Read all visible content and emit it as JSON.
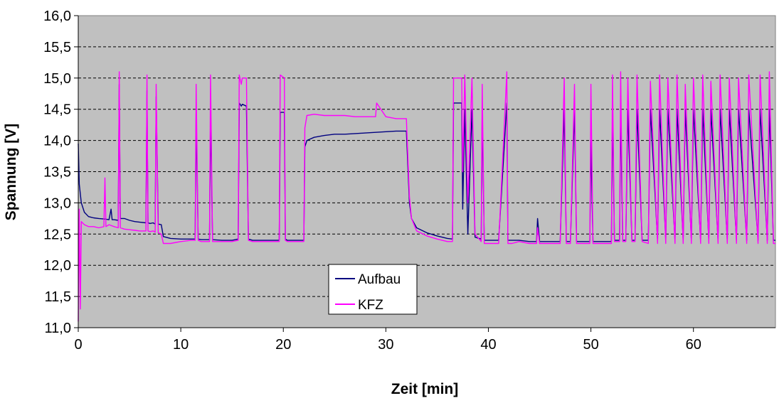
{
  "chart_data": {
    "type": "line",
    "xlabel": "Zeit [min]",
    "ylabel": "Spannung [V]",
    "xlim": [
      0,
      68
    ],
    "ylim": [
      11.0,
      16.0
    ],
    "x_ticks": [
      0,
      10,
      20,
      30,
      40,
      50,
      60
    ],
    "x_tick_labels": [
      "0",
      "10",
      "20",
      "30",
      "40",
      "50",
      "60"
    ],
    "y_ticks": [
      11.0,
      11.5,
      12.0,
      12.5,
      13.0,
      13.5,
      14.0,
      14.5,
      15.0,
      15.5,
      16.0
    ],
    "y_tick_labels": [
      "11,0",
      "11,5",
      "12,0",
      "12,5",
      "13,0",
      "13,5",
      "14,0",
      "14,5",
      "15,0",
      "15,5",
      "16,0"
    ],
    "grid": "horizontal-dashed",
    "plot_background": "#c0c0c0",
    "legend": {
      "placement": "bottom-center",
      "entries": [
        "Aufbau",
        "KFZ"
      ]
    },
    "series": [
      {
        "name": "Aufbau",
        "color": "#000080",
        "x": [
          0,
          0.1,
          0.3,
          0.6,
          1.0,
          1.5,
          2.0,
          2.6,
          3.0,
          3.2,
          3.3,
          3.5,
          3.9,
          4.0,
          4.1,
          4.5,
          5.0,
          5.5,
          6.0,
          6.6,
          6.7,
          6.8,
          7.0,
          7.3,
          7.5,
          7.6,
          7.8,
          8.1,
          8.3,
          9.0,
          10.0,
          11.0,
          11.4,
          11.5,
          11.7,
          12.0,
          12.8,
          12.9,
          13.1,
          14.0,
          15.0,
          15.6,
          15.7,
          15.9,
          16.0,
          16.4,
          16.6,
          17.0,
          18.0,
          19.0,
          19.6,
          19.7,
          20.1,
          20.2,
          20.4,
          21.0,
          22.0,
          22.1,
          22.3,
          23.0,
          24.0,
          25.0,
          26.0,
          27.0,
          28.0,
          29.0,
          30.0,
          31.0,
          32.0,
          32.3,
          32.5,
          33.0,
          34.0,
          35.0,
          36.0,
          36.5,
          36.6,
          37.0,
          37.4,
          37.5,
          37.7,
          38.0,
          38.4,
          38.7,
          39.3,
          39.4,
          39.6,
          40.0,
          41.0,
          41.8,
          41.9,
          42.3,
          43.0,
          44.0,
          44.7,
          44.8,
          45.0,
          46.0,
          47.0,
          47.4,
          47.6,
          48.0,
          48.4,
          48.6,
          49.0,
          49.9,
          50.0,
          50.2,
          51.0,
          52.0,
          52.1,
          52.3,
          52.8,
          52.9,
          53.1,
          53.4,
          53.6,
          54.0,
          54.3,
          54.5,
          55.0,
          55.6,
          55.8,
          56.5,
          56.7,
          57.3,
          57.5,
          58.2,
          58.4,
          59.0,
          59.2,
          59.8,
          60.0,
          60.7,
          60.9,
          61.5,
          61.7,
          62.4,
          62.6,
          63.3,
          63.5,
          64.2,
          64.4,
          65.2,
          65.4,
          66.3,
          66.5,
          67.2,
          67.4,
          67.8,
          68.0
        ],
        "y": [
          13.95,
          13.3,
          13.0,
          12.85,
          12.78,
          12.76,
          12.75,
          12.74,
          12.73,
          12.9,
          12.73,
          12.73,
          12.72,
          14.9,
          12.75,
          12.75,
          12.72,
          12.7,
          12.69,
          12.68,
          14.8,
          12.68,
          12.67,
          12.68,
          12.66,
          14.7,
          12.66,
          12.65,
          12.46,
          12.43,
          12.42,
          12.42,
          12.42,
          14.45,
          12.42,
          12.41,
          12.41,
          14.45,
          12.41,
          12.4,
          12.4,
          12.42,
          14.6,
          14.55,
          14.58,
          14.55,
          12.42,
          12.4,
          12.4,
          12.4,
          12.4,
          14.45,
          14.45,
          12.42,
          12.4,
          12.4,
          12.4,
          13.9,
          14.0,
          14.05,
          14.08,
          14.1,
          14.1,
          14.11,
          14.12,
          14.13,
          14.14,
          14.15,
          14.15,
          13.0,
          12.75,
          12.6,
          12.52,
          12.47,
          12.43,
          12.42,
          14.6,
          14.6,
          14.6,
          12.9,
          14.5,
          12.5,
          14.5,
          12.45,
          12.42,
          14.5,
          12.4,
          12.4,
          12.4,
          14.6,
          12.4,
          12.4,
          12.4,
          12.38,
          12.38,
          12.75,
          12.38,
          12.38,
          12.38,
          14.5,
          12.38,
          12.38,
          14.5,
          12.38,
          12.38,
          12.38,
          14.0,
          12.38,
          12.38,
          12.38,
          14.5,
          12.4,
          12.4,
          14.5,
          12.4,
          12.4,
          14.5,
          12.4,
          12.4,
          14.5,
          12.4,
          12.4,
          14.5,
          12.4,
          14.5,
          12.4,
          14.5,
          12.4,
          14.5,
          12.4,
          14.5,
          12.4,
          14.5,
          12.4,
          14.5,
          12.4,
          14.5,
          12.4,
          14.5,
          12.4,
          14.5,
          12.4,
          14.5,
          12.4,
          14.5,
          12.4,
          14.5,
          12.4,
          14.5,
          12.4,
          12.4
        ]
      },
      {
        "name": "KFZ",
        "color": "#ff00ff",
        "x": [
          0,
          0.1,
          0.2,
          0.3,
          0.6,
          1.0,
          1.5,
          2.0,
          2.5,
          2.6,
          2.7,
          3.0,
          3.5,
          3.9,
          4.0,
          4.1,
          4.5,
          5.0,
          5.5,
          6.0,
          6.6,
          6.7,
          6.8,
          7.0,
          7.3,
          7.5,
          7.6,
          7.8,
          8.1,
          8.3,
          9.0,
          10.0,
          11.0,
          11.4,
          11.5,
          11.7,
          12.0,
          12.8,
          12.9,
          13.1,
          14.0,
          15.0,
          15.6,
          15.7,
          15.9,
          16.0,
          16.4,
          16.6,
          17.0,
          18.0,
          19.0,
          19.6,
          19.7,
          20.1,
          20.2,
          20.4,
          21.0,
          22.0,
          22.1,
          22.3,
          23.0,
          24.0,
          25.0,
          26.0,
          27.0,
          28.0,
          29.0,
          29.1,
          30.0,
          31.0,
          32.0,
          32.3,
          32.5,
          33.0,
          34.0,
          35.0,
          36.0,
          36.5,
          36.6,
          37.0,
          37.4,
          37.5,
          37.7,
          38.0,
          38.4,
          38.7,
          39.3,
          39.4,
          39.6,
          40.0,
          41.0,
          41.8,
          41.9,
          42.3,
          43.0,
          44.0,
          44.7,
          44.8,
          45.0,
          46.0,
          47.0,
          47.4,
          47.6,
          48.0,
          48.4,
          48.6,
          49.0,
          49.9,
          50.0,
          50.2,
          51.0,
          52.0,
          52.1,
          52.3,
          52.8,
          52.9,
          53.1,
          53.4,
          53.6,
          54.0,
          54.3,
          54.5,
          55.0,
          55.6,
          55.8,
          56.5,
          56.7,
          57.3,
          57.5,
          58.2,
          58.4,
          59.0,
          59.2,
          59.8,
          60.0,
          60.7,
          60.9,
          61.5,
          61.7,
          62.4,
          62.6,
          63.3,
          63.5,
          64.2,
          64.4,
          65.2,
          65.4,
          66.3,
          66.5,
          67.2,
          67.4,
          67.8,
          68.0
        ],
        "y": [
          11.1,
          12.9,
          11.3,
          12.7,
          12.65,
          12.62,
          12.62,
          12.6,
          12.62,
          13.4,
          12.62,
          12.65,
          12.62,
          12.6,
          15.1,
          12.6,
          12.58,
          12.57,
          12.56,
          12.55,
          12.55,
          15.05,
          12.55,
          12.54,
          12.55,
          12.53,
          14.9,
          12.52,
          12.5,
          12.35,
          12.35,
          12.38,
          12.4,
          12.4,
          14.9,
          12.4,
          12.38,
          12.38,
          15.05,
          12.38,
          12.38,
          12.38,
          12.4,
          15.05,
          14.9,
          15.0,
          15.0,
          12.4,
          12.38,
          12.38,
          12.38,
          12.38,
          15.05,
          15.0,
          12.4,
          12.38,
          12.38,
          12.38,
          14.2,
          14.4,
          14.42,
          14.4,
          14.4,
          14.4,
          14.38,
          14.38,
          14.38,
          14.6,
          14.38,
          14.35,
          14.35,
          13.1,
          12.75,
          12.55,
          12.47,
          12.42,
          12.38,
          12.38,
          15.0,
          15.0,
          15.0,
          13.5,
          15.05,
          13.0,
          15.0,
          12.5,
          12.38,
          14.9,
          12.35,
          12.35,
          12.35,
          15.1,
          12.35,
          12.35,
          12.38,
          12.35,
          12.35,
          12.6,
          12.35,
          12.35,
          12.35,
          15.0,
          12.35,
          12.35,
          14.9,
          12.35,
          12.35,
          12.35,
          14.9,
          12.35,
          12.35,
          12.35,
          15.05,
          12.38,
          12.38,
          15.1,
          12.38,
          12.38,
          15.0,
          12.38,
          12.38,
          15.05,
          12.38,
          12.35,
          14.95,
          12.35,
          15.05,
          12.35,
          15.0,
          12.35,
          15.05,
          12.35,
          14.9,
          12.35,
          15.0,
          12.35,
          15.05,
          12.35,
          14.95,
          12.35,
          15.05,
          12.35,
          15.0,
          12.35,
          15.0,
          12.35,
          15.05,
          12.35,
          15.05,
          12.35,
          15.1,
          12.35,
          12.35
        ]
      }
    ]
  }
}
